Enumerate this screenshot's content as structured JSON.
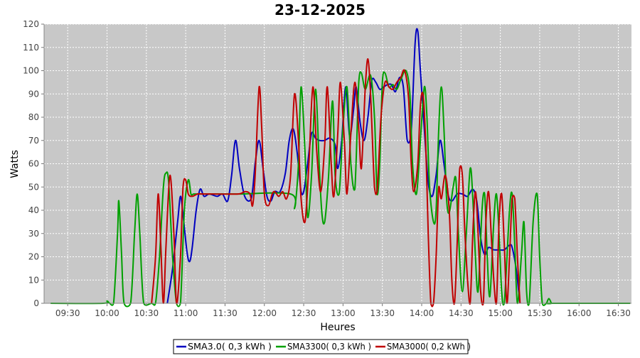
{
  "chart_data": {
    "type": "line",
    "title": "23-12-2025",
    "xlabel": "Heures",
    "ylabel": "Watts",
    "x_ticks": [
      "09:30",
      "10:00",
      "10:30",
      "11:00",
      "11:30",
      "12:00",
      "12:30",
      "13:00",
      "13:30",
      "14:00",
      "14:30",
      "15:00",
      "15:30",
      "16:00",
      "16:30"
    ],
    "x_range": [
      "09:12",
      "16:40"
    ],
    "ylim": [
      0,
      120
    ],
    "y_ticks": [
      0,
      10,
      20,
      30,
      40,
      50,
      60,
      70,
      80,
      90,
      100,
      110,
      120
    ],
    "grid": true,
    "background_color": "#c8c8c8",
    "legend_position": "bottom",
    "series": [
      {
        "name": "SMA3.0( 0,3 kWh )",
        "color": "#0000c0",
        "points": [
          [
            "10:46",
            0
          ],
          [
            "10:50",
            15
          ],
          [
            "10:54",
            36
          ],
          [
            "10:56",
            46
          ],
          [
            "10:58",
            38
          ],
          [
            "11:01",
            22
          ],
          [
            "11:03",
            18
          ],
          [
            "11:05",
            24
          ],
          [
            "11:08",
            40
          ],
          [
            "11:11",
            49
          ],
          [
            "11:14",
            46
          ],
          [
            "11:18",
            47
          ],
          [
            "11:24",
            46
          ],
          [
            "11:28",
            47
          ],
          [
            "11:32",
            44
          ],
          [
            "11:35",
            55
          ],
          [
            "11:38",
            70
          ],
          [
            "11:41",
            58
          ],
          [
            "11:45",
            46
          ],
          [
            "11:50",
            45
          ],
          [
            "11:53",
            60
          ],
          [
            "11:56",
            70
          ],
          [
            "11:59",
            58
          ],
          [
            "12:02",
            46
          ],
          [
            "12:05",
            44
          ],
          [
            "12:08",
            48
          ],
          [
            "12:12",
            48
          ],
          [
            "12:16",
            56
          ],
          [
            "12:19",
            70
          ],
          [
            "12:22",
            75
          ],
          [
            "12:25",
            65
          ],
          [
            "12:28",
            48
          ],
          [
            "12:30",
            48
          ],
          [
            "12:33",
            60
          ],
          [
            "12:36",
            73
          ],
          [
            "12:39",
            71
          ],
          [
            "12:42",
            70
          ],
          [
            "12:46",
            70
          ],
          [
            "12:50",
            71
          ],
          [
            "12:54",
            68
          ],
          [
            "12:56",
            58
          ],
          [
            "12:59",
            70
          ],
          [
            "13:02",
            93
          ],
          [
            "13:05",
            72
          ],
          [
            "13:08",
            83
          ],
          [
            "13:10",
            93
          ],
          [
            "13:13",
            78
          ],
          [
            "13:16",
            70
          ],
          [
            "13:19",
            80
          ],
          [
            "13:22",
            96
          ],
          [
            "13:25",
            95
          ],
          [
            "13:28",
            92
          ],
          [
            "13:31",
            93
          ],
          [
            "13:34",
            94
          ],
          [
            "13:37",
            94
          ],
          [
            "13:40",
            91
          ],
          [
            "13:43",
            97
          ],
          [
            "13:46",
            93
          ],
          [
            "13:49",
            70
          ],
          [
            "13:52",
            74
          ],
          [
            "13:55",
            112
          ],
          [
            "13:57",
            117
          ],
          [
            "13:59",
            100
          ],
          [
            "14:02",
            75
          ],
          [
            "14:05",
            52
          ],
          [
            "14:08",
            46
          ],
          [
            "14:11",
            55
          ],
          [
            "14:14",
            70
          ],
          [
            "14:17",
            60
          ],
          [
            "14:20",
            47
          ],
          [
            "14:23",
            44
          ],
          [
            "14:27",
            47
          ],
          [
            "14:31",
            47
          ],
          [
            "14:35",
            46
          ],
          [
            "14:39",
            49
          ],
          [
            "14:42",
            44
          ],
          [
            "14:45",
            28
          ],
          [
            "14:48",
            21
          ],
          [
            "14:51",
            24
          ],
          [
            "14:55",
            23
          ],
          [
            "14:59",
            23
          ],
          [
            "15:03",
            23
          ],
          [
            "15:07",
            25
          ],
          [
            "15:09",
            24
          ],
          [
            "15:12",
            15
          ],
          [
            "15:14",
            5
          ],
          [
            "15:15",
            0
          ]
        ]
      },
      {
        "name": "SMA3300( 0,3 kWh )",
        "color": "#00a000",
        "points": [
          [
            "09:17",
            0
          ],
          [
            "09:57",
            0
          ],
          [
            "10:00",
            1
          ],
          [
            "10:02",
            0
          ],
          [
            "10:05",
            0
          ],
          [
            "10:08",
            30
          ],
          [
            "10:09",
            44
          ],
          [
            "10:11",
            22
          ],
          [
            "10:13",
            0
          ],
          [
            "10:18",
            0
          ],
          [
            "10:21",
            30
          ],
          [
            "10:23",
            47
          ],
          [
            "10:25",
            30
          ],
          [
            "10:28",
            0
          ],
          [
            "10:34",
            0
          ],
          [
            "10:37",
            0
          ],
          [
            "10:40",
            20
          ],
          [
            "10:43",
            50
          ],
          [
            "10:45",
            56
          ],
          [
            "10:47",
            52
          ],
          [
            "10:50",
            20
          ],
          [
            "10:53",
            0
          ],
          [
            "10:56",
            0
          ],
          [
            "10:59",
            40
          ],
          [
            "11:02",
            53
          ],
          [
            "11:04",
            47
          ],
          [
            "11:06",
            47
          ],
          [
            "11:08",
            47
          ],
          [
            "11:12",
            47
          ],
          [
            "11:16",
            47
          ],
          [
            "11:20",
            47
          ],
          [
            "11:40",
            47
          ],
          [
            "12:20",
            47
          ],
          [
            "12:23",
            41
          ],
          [
            "12:26",
            60
          ],
          [
            "12:28",
            93
          ],
          [
            "12:31",
            65
          ],
          [
            "12:33",
            37
          ],
          [
            "12:36",
            55
          ],
          [
            "12:39",
            92
          ],
          [
            "12:42",
            57
          ],
          [
            "12:44",
            38
          ],
          [
            "12:46",
            35
          ],
          [
            "12:49",
            55
          ],
          [
            "12:52",
            87
          ],
          [
            "12:54",
            55
          ],
          [
            "12:57",
            47
          ],
          [
            "13:00",
            76
          ],
          [
            "13:03",
            93
          ],
          [
            "13:06",
            60
          ],
          [
            "13:09",
            49
          ],
          [
            "13:12",
            95
          ],
          [
            "13:14",
            99
          ],
          [
            "13:17",
            92
          ],
          [
            "13:21",
            98
          ],
          [
            "13:24",
            80
          ],
          [
            "13:26",
            47
          ],
          [
            "13:28",
            60
          ],
          [
            "13:30",
            95
          ],
          [
            "13:32",
            99
          ],
          [
            "13:35",
            93
          ],
          [
            "13:38",
            94
          ],
          [
            "13:41",
            92
          ],
          [
            "13:44",
            96
          ],
          [
            "13:48",
            100
          ],
          [
            "13:51",
            90
          ],
          [
            "13:53",
            60
          ],
          [
            "13:56",
            47
          ],
          [
            "13:59",
            70
          ],
          [
            "14:02",
            93
          ],
          [
            "14:04",
            80
          ],
          [
            "14:06",
            50
          ],
          [
            "14:09",
            35
          ],
          [
            "14:11",
            40
          ],
          [
            "14:13",
            75
          ],
          [
            "14:15",
            93
          ],
          [
            "14:17",
            75
          ],
          [
            "14:19",
            45
          ],
          [
            "14:21",
            39
          ],
          [
            "14:24",
            50
          ],
          [
            "14:26",
            54
          ],
          [
            "14:28",
            30
          ],
          [
            "14:31",
            5
          ],
          [
            "14:34",
            30
          ],
          [
            "14:37",
            58
          ],
          [
            "14:39",
            45
          ],
          [
            "14:41",
            20
          ],
          [
            "14:43",
            5
          ],
          [
            "14:46",
            40
          ],
          [
            "14:48",
            47
          ],
          [
            "14:50",
            20
          ],
          [
            "14:52",
            3
          ],
          [
            "14:55",
            35
          ],
          [
            "14:57",
            47
          ],
          [
            "14:59",
            30
          ],
          [
            "15:01",
            5
          ],
          [
            "15:03",
            0
          ],
          [
            "15:07",
            40
          ],
          [
            "15:09",
            47
          ],
          [
            "15:11",
            25
          ],
          [
            "15:13",
            0
          ],
          [
            "15:16",
            20
          ],
          [
            "15:18",
            35
          ],
          [
            "15:20",
            5
          ],
          [
            "15:22",
            0
          ],
          [
            "15:25",
            35
          ],
          [
            "15:28",
            47
          ],
          [
            "15:30",
            20
          ],
          [
            "15:32",
            0
          ],
          [
            "15:35",
            0
          ],
          [
            "15:37",
            2
          ],
          [
            "15:39",
            0
          ],
          [
            "15:40",
            0
          ],
          [
            "16:39",
            0
          ]
        ]
      },
      {
        "name": "SMA3000( 0,2 kWh )",
        "color": "#c00000",
        "points": [
          [
            "10:34",
            0
          ],
          [
            "10:37",
            20
          ],
          [
            "10:39",
            47
          ],
          [
            "10:41",
            25
          ],
          [
            "10:43",
            0
          ],
          [
            "10:45",
            25
          ],
          [
            "10:48",
            55
          ],
          [
            "10:51",
            30
          ],
          [
            "10:53",
            0
          ],
          [
            "10:56",
            20
          ],
          [
            "10:58",
            50
          ],
          [
            "11:00",
            53
          ],
          [
            "11:02",
            47
          ],
          [
            "11:05",
            46
          ],
          [
            "11:09",
            47
          ],
          [
            "11:13",
            47
          ],
          [
            "11:20",
            47
          ],
          [
            "11:40",
            47
          ],
          [
            "11:45",
            48
          ],
          [
            "11:49",
            47
          ],
          [
            "11:51",
            42
          ],
          [
            "11:53",
            55
          ],
          [
            "11:56",
            93
          ],
          [
            "11:58",
            75
          ],
          [
            "12:00",
            47
          ],
          [
            "12:03",
            42
          ],
          [
            "12:06",
            47
          ],
          [
            "12:08",
            48
          ],
          [
            "12:11",
            46
          ],
          [
            "12:14",
            48
          ],
          [
            "12:17",
            45
          ],
          [
            "12:20",
            55
          ],
          [
            "12:23",
            90
          ],
          [
            "12:26",
            70
          ],
          [
            "12:28",
            45
          ],
          [
            "12:31",
            35
          ],
          [
            "12:34",
            60
          ],
          [
            "12:37",
            93
          ],
          [
            "12:40",
            65
          ],
          [
            "12:43",
            48
          ],
          [
            "12:46",
            68
          ],
          [
            "12:48",
            93
          ],
          [
            "12:51",
            60
          ],
          [
            "12:53",
            46
          ],
          [
            "12:56",
            73
          ],
          [
            "12:58",
            95
          ],
          [
            "13:01",
            70
          ],
          [
            "13:03",
            47
          ],
          [
            "13:06",
            73
          ],
          [
            "13:09",
            95
          ],
          [
            "13:12",
            75
          ],
          [
            "13:14",
            58
          ],
          [
            "13:17",
            93
          ],
          [
            "13:19",
            105
          ],
          [
            "13:21",
            90
          ],
          [
            "13:24",
            50
          ],
          [
            "13:26",
            48
          ],
          [
            "13:29",
            80
          ],
          [
            "13:32",
            95
          ],
          [
            "13:35",
            93
          ],
          [
            "13:38",
            92
          ],
          [
            "13:41",
            95
          ],
          [
            "13:44",
            97
          ],
          [
            "13:47",
            100
          ],
          [
            "13:50",
            88
          ],
          [
            "13:52",
            60
          ],
          [
            "13:54",
            48
          ],
          [
            "13:57",
            60
          ],
          [
            "13:59",
            85
          ],
          [
            "14:01",
            90
          ],
          [
            "14:03",
            70
          ],
          [
            "14:05",
            30
          ],
          [
            "14:07",
            0
          ],
          [
            "14:09",
            0
          ],
          [
            "14:11",
            20
          ],
          [
            "14:13",
            50
          ],
          [
            "14:15",
            45
          ],
          [
            "14:18",
            55
          ],
          [
            "14:21",
            40
          ],
          [
            "14:23",
            10
          ],
          [
            "14:25",
            0
          ],
          [
            "14:27",
            25
          ],
          [
            "14:29",
            58
          ],
          [
            "14:31",
            55
          ],
          [
            "14:33",
            30
          ],
          [
            "14:35",
            10
          ],
          [
            "14:37",
            0
          ],
          [
            "14:39",
            30
          ],
          [
            "14:41",
            48
          ],
          [
            "14:43",
            30
          ],
          [
            "14:45",
            5
          ],
          [
            "14:47",
            0
          ],
          [
            "14:49",
            35
          ],
          [
            "14:51",
            48
          ],
          [
            "14:53",
            30
          ],
          [
            "14:55",
            10
          ],
          [
            "14:57",
            0
          ],
          [
            "14:59",
            35
          ],
          [
            "15:01",
            47
          ],
          [
            "15:03",
            25
          ],
          [
            "15:05",
            0
          ],
          [
            "15:07",
            20
          ],
          [
            "15:09",
            45
          ],
          [
            "15:11",
            45
          ],
          [
            "15:13",
            20
          ],
          [
            "15:15",
            0
          ]
        ]
      }
    ]
  }
}
